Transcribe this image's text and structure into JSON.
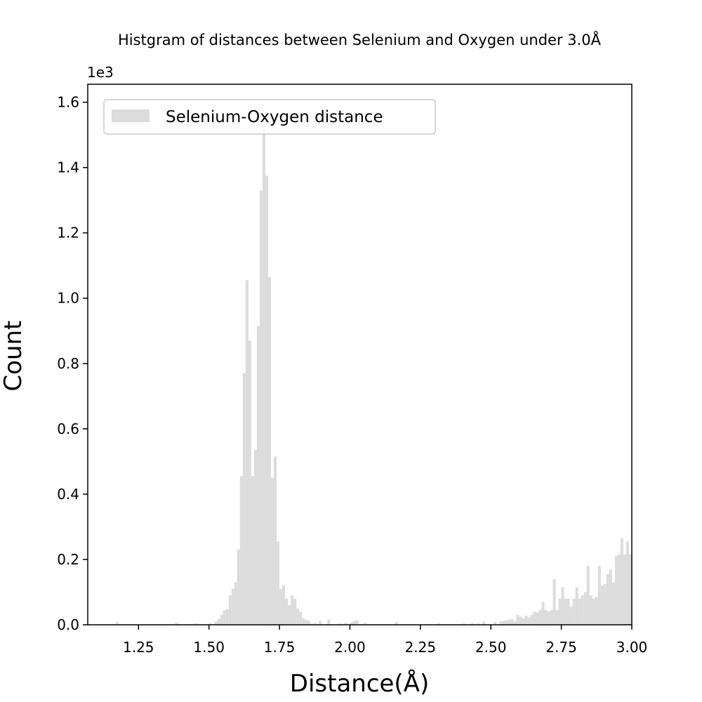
{
  "chart_data": {
    "type": "bar",
    "title": "Histgram of distances between Selenium and Oxygen under 3.0Å",
    "xlabel": "Distance(Å)",
    "ylabel": "Count",
    "y_multiplier": "1e3",
    "xlim": [
      1.07,
      3.0
    ],
    "ylim": [
      0,
      1655
    ],
    "x_ticks": [
      1.25,
      1.5,
      1.75,
      2.0,
      2.25,
      2.5,
      2.75,
      3.0
    ],
    "x_tick_labels": [
      "1.25",
      "1.50",
      "1.75",
      "2.00",
      "2.25",
      "2.50",
      "2.75",
      "3.00"
    ],
    "y_ticks": [
      0,
      200,
      400,
      600,
      800,
      1000,
      1200,
      1400,
      1600
    ],
    "y_tick_labels": [
      "0.0",
      "0.2",
      "0.4",
      "0.6",
      "0.8",
      "1.0",
      "1.2",
      "1.4",
      "1.6"
    ],
    "legend": {
      "label": "Selenium-Oxygen distance",
      "position": "upper-left"
    },
    "bar_color": "#dcdcdc",
    "grid": false,
    "bin_width": 0.01,
    "bins": [
      [
        1.17,
        8
      ],
      [
        1.38,
        6
      ],
      [
        1.45,
        5
      ],
      [
        1.5,
        5
      ],
      [
        1.52,
        10
      ],
      [
        1.53,
        18
      ],
      [
        1.54,
        30
      ],
      [
        1.55,
        45
      ],
      [
        1.56,
        48
      ],
      [
        1.57,
        90
      ],
      [
        1.58,
        110
      ],
      [
        1.59,
        130
      ],
      [
        1.6,
        230
      ],
      [
        1.61,
        455
      ],
      [
        1.62,
        770
      ],
      [
        1.63,
        1055
      ],
      [
        1.64,
        870
      ],
      [
        1.65,
        455
      ],
      [
        1.66,
        535
      ],
      [
        1.67,
        915
      ],
      [
        1.68,
        1330
      ],
      [
        1.69,
        1560
      ],
      [
        1.7,
        1375
      ],
      [
        1.71,
        1065
      ],
      [
        1.72,
        450
      ],
      [
        1.73,
        515
      ],
      [
        1.74,
        255
      ],
      [
        1.75,
        110
      ],
      [
        1.76,
        120
      ],
      [
        1.77,
        80
      ],
      [
        1.78,
        60
      ],
      [
        1.79,
        90
      ],
      [
        1.8,
        80
      ],
      [
        1.81,
        50
      ],
      [
        1.82,
        40
      ],
      [
        1.83,
        20
      ],
      [
        1.84,
        15
      ],
      [
        1.85,
        12
      ],
      [
        1.87,
        5
      ],
      [
        1.89,
        12
      ],
      [
        1.92,
        16
      ],
      [
        1.96,
        4
      ],
      [
        1.98,
        6
      ],
      [
        2.0,
        6
      ],
      [
        2.01,
        12
      ],
      [
        2.02,
        14
      ],
      [
        2.05,
        6
      ],
      [
        2.16,
        8
      ],
      [
        2.31,
        5
      ],
      [
        2.4,
        4
      ],
      [
        2.43,
        5
      ],
      [
        2.45,
        4
      ],
      [
        2.47,
        10
      ],
      [
        2.51,
        8
      ],
      [
        2.53,
        10
      ],
      [
        2.54,
        12
      ],
      [
        2.55,
        14
      ],
      [
        2.56,
        16
      ],
      [
        2.57,
        18
      ],
      [
        2.58,
        10
      ],
      [
        2.59,
        30
      ],
      [
        2.6,
        25
      ],
      [
        2.61,
        20
      ],
      [
        2.62,
        28
      ],
      [
        2.63,
        22
      ],
      [
        2.64,
        30
      ],
      [
        2.65,
        40
      ],
      [
        2.66,
        38
      ],
      [
        2.67,
        45
      ],
      [
        2.68,
        70
      ],
      [
        2.69,
        45
      ],
      [
        2.7,
        40
      ],
      [
        2.71,
        45
      ],
      [
        2.72,
        140
      ],
      [
        2.73,
        45
      ],
      [
        2.74,
        80
      ],
      [
        2.75,
        115
      ],
      [
        2.76,
        80
      ],
      [
        2.77,
        80
      ],
      [
        2.78,
        55
      ],
      [
        2.79,
        80
      ],
      [
        2.8,
        115
      ],
      [
        2.81,
        80
      ],
      [
        2.82,
        90
      ],
      [
        2.83,
        100
      ],
      [
        2.84,
        180
      ],
      [
        2.85,
        90
      ],
      [
        2.86,
        80
      ],
      [
        2.87,
        85
      ],
      [
        2.88,
        180
      ],
      [
        2.89,
        120
      ],
      [
        2.9,
        125
      ],
      [
        2.91,
        155
      ],
      [
        2.92,
        170
      ],
      [
        2.93,
        130
      ],
      [
        2.94,
        210
      ],
      [
        2.95,
        215
      ],
      [
        2.96,
        265
      ],
      [
        2.97,
        215
      ],
      [
        2.98,
        255
      ],
      [
        2.99,
        215
      ]
    ]
  }
}
